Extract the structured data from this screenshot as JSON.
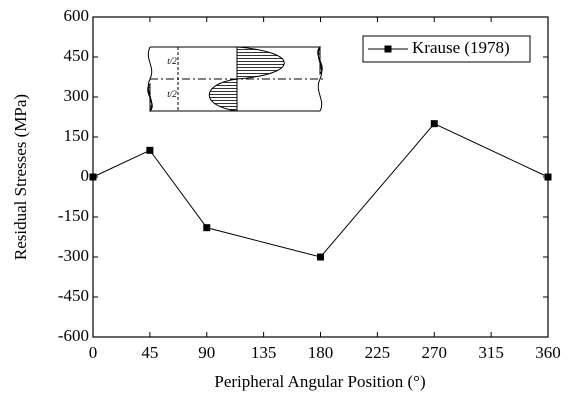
{
  "chart_data": {
    "type": "line",
    "xlabel": "Peripheral Angular Position (°)",
    "ylabel": "Residual Stresses (MPa)",
    "x": [
      0,
      45,
      90,
      180,
      270,
      360
    ],
    "series": [
      {
        "name": "Krause (1978)",
        "color": "#000000",
        "values": [
          0,
          100,
          -190,
          -300,
          200,
          0
        ]
      }
    ],
    "xlim": [
      0,
      360
    ],
    "xticks": [
      0,
      45,
      90,
      135,
      180,
      225,
      270,
      315,
      360
    ],
    "ylim": [
      -600,
      600
    ],
    "yticks": [
      -600,
      -450,
      -300,
      -150,
      0,
      150,
      300,
      450,
      600
    ],
    "grid": false,
    "legend": "top-right",
    "inset": {
      "labels": [
        "t/2",
        "t/2"
      ]
    }
  }
}
